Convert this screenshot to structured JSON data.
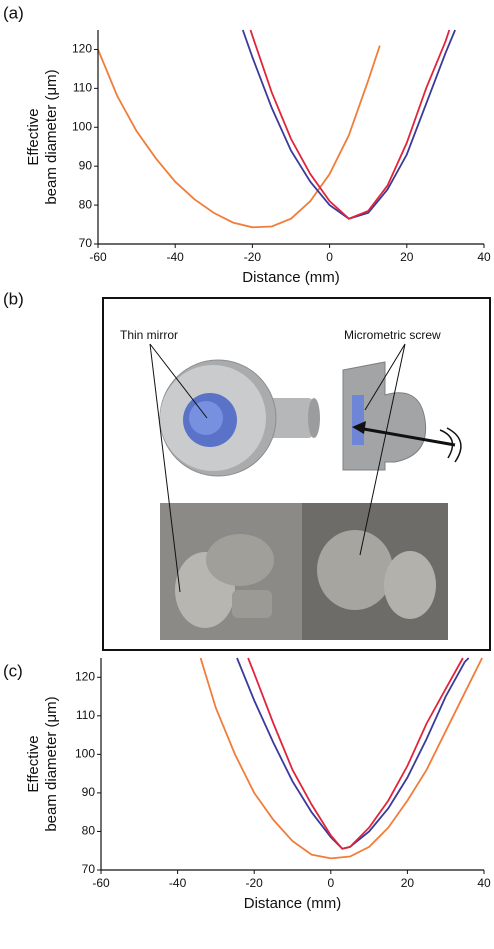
{
  "panel_labels": [
    "(a)",
    "(b)",
    "(c)"
  ],
  "figure_b": {
    "labels": [
      "Thin mirror",
      "Micrometric screw"
    ]
  },
  "chart_data": [
    {
      "type": "line",
      "xlabel": "Distance (mm)",
      "ylabel": [
        "Effective",
        "beam diameter (μm)"
      ],
      "xlim": [
        -60,
        40
      ],
      "ylim": [
        70,
        125
      ],
      "xticks": [
        -60,
        -40,
        -20,
        0,
        20,
        40
      ],
      "yticks": [
        70,
        80,
        90,
        100,
        110,
        120
      ],
      "series": [
        {
          "color": "#f07d3a",
          "x": [
            -60,
            -55,
            -50,
            -45,
            -40,
            -35,
            -30,
            -25,
            -20,
            -15,
            -10,
            -5,
            0,
            5,
            10,
            13
          ],
          "values": [
            120,
            108,
            99,
            92,
            86,
            81.5,
            78,
            75.5,
            74.3,
            74.5,
            76.5,
            81,
            88,
            98,
            112,
            121
          ]
        },
        {
          "color": "#3a3a9a",
          "x": [
            -22.5,
            -20,
            -15,
            -10,
            -5,
            0,
            5,
            10,
            15,
            20,
            25,
            30,
            32.5
          ],
          "values": [
            125,
            118,
            105,
            94,
            86,
            80,
            76.5,
            78,
            84,
            93,
            106,
            119,
            125
          ]
        },
        {
          "color": "#e0253a",
          "x": [
            -20.5,
            -20,
            -15,
            -10,
            -5,
            0,
            5,
            10,
            15,
            20,
            25,
            30,
            31
          ],
          "values": [
            125,
            123.5,
            109,
            97,
            88,
            81,
            76.5,
            78.5,
            85,
            96,
            110,
            122,
            125
          ]
        }
      ]
    },
    {
      "type": "line",
      "xlabel": "Distance (mm)",
      "ylabel": [
        "Effective",
        "beam diameter (μm)"
      ],
      "xlim": [
        -60,
        40
      ],
      "ylim": [
        70,
        125
      ],
      "xticks": [
        -60,
        -40,
        -20,
        0,
        20,
        40
      ],
      "yticks": [
        70,
        80,
        90,
        100,
        110,
        120
      ],
      "series": [
        {
          "color": "#f07d3a",
          "x": [
            -34,
            -30,
            -25,
            -20,
            -15,
            -10,
            -5,
            0,
            5,
            10,
            15,
            20,
            25,
            30,
            35,
            39.5
          ],
          "values": [
            125,
            112,
            100,
            90,
            83,
            77.5,
            74,
            73,
            73.5,
            76,
            81,
            88,
            96,
            106,
            116,
            125
          ]
        },
        {
          "color": "#3a3a9a",
          "x": [
            -24.5,
            -20,
            -15,
            -10,
            -5,
            0,
            3,
            5,
            10,
            15,
            20,
            25,
            30,
            35,
            36
          ],
          "values": [
            125,
            114,
            103,
            93,
            85,
            78.5,
            75.5,
            76,
            80,
            86,
            94,
            104,
            115,
            124,
            125
          ]
        },
        {
          "color": "#e0253a",
          "x": [
            -21.6,
            -20,
            -15,
            -10,
            -5,
            0,
            3,
            5,
            10,
            15,
            20,
            25,
            30,
            34.5
          ],
          "values": [
            125,
            121,
            108,
            96,
            87,
            79,
            75.5,
            76,
            81,
            88,
            97,
            108,
            117,
            125
          ]
        }
      ]
    }
  ]
}
